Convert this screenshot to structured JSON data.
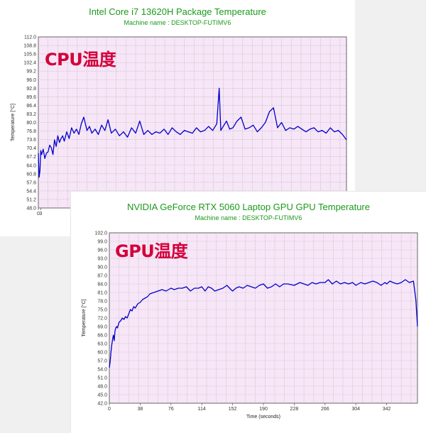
{
  "cpu": {
    "title": "Intel Core i7 13620H Package Temperature",
    "subtitle": "Machine name : DESKTOP-FUTIMV6",
    "overlay": "CPU温度"
  },
  "gpu": {
    "title": "NVIDIA GeForce RTX 5060 Laptop GPU GPU Temperature",
    "subtitle": "Machine name : DESKTOP-FUTIMV6",
    "overlay": "GPU温度"
  },
  "colors": {
    "plot_bg": "#f7e6f7",
    "line": "#0000cc",
    "title": "#1a9a1a",
    "overlay": "#d4003b",
    "grid": "#a5a5a5"
  },
  "chart_data": [
    {
      "type": "line",
      "title": "Intel Core i7 13620H Package Temperature",
      "subtitle": "Machine name : DESKTOP-FUTIMV6",
      "xlabel": "",
      "ylabel": "Temperature [°C]",
      "ylim": [
        48.0,
        112.0
      ],
      "xlim": [
        0,
        380
      ],
      "yticks": [
        "48.0",
        "51.2",
        "54.4",
        "57.6",
        "60.8",
        "64.0",
        "67.2",
        "70.4",
        "73.6",
        "76.8",
        "80.0",
        "83.2",
        "86.4",
        "89.6",
        "92.8",
        "96.0",
        "99.2",
        "102.4",
        "105.6",
        "108.8",
        "112.0"
      ],
      "xticks": [
        "0",
        "3"
      ],
      "grid": true,
      "series": [
        {
          "x": [
            0,
            1,
            2,
            3,
            4,
            6,
            8,
            10,
            12,
            14,
            16,
            18,
            20,
            22,
            24,
            26,
            28,
            30,
            32,
            35,
            38,
            41,
            44,
            47,
            50,
            53,
            56,
            60,
            63,
            66,
            70,
            74,
            78,
            82,
            86,
            90,
            95,
            100,
            105,
            110,
            115,
            120,
            125,
            130,
            135,
            140,
            145,
            150,
            155,
            160,
            165,
            170,
            175,
            180,
            185,
            190,
            195,
            200,
            205,
            210,
            215,
            220,
            223,
            225,
            228,
            232,
            236,
            240,
            245,
            250,
            255,
            260,
            265,
            270,
            275,
            280,
            285,
            290,
            295,
            300,
            305,
            310,
            315,
            320,
            325,
            330,
            335,
            340,
            345,
            350,
            355,
            360,
            365,
            370,
            375,
            380
          ],
          "y": [
            68.5,
            59.5,
            62.0,
            69.5,
            68.0,
            70.0,
            66.5,
            68.5,
            69.0,
            71.5,
            70.5,
            68.0,
            73.5,
            71.0,
            75.0,
            72.5,
            74.0,
            75.0,
            73.0,
            76.5,
            74.0,
            78.0,
            76.0,
            77.5,
            75.5,
            79.5,
            82.0,
            77.0,
            78.5,
            76.0,
            77.5,
            75.5,
            79.0,
            77.0,
            81.0,
            76.0,
            77.5,
            75.0,
            76.5,
            74.5,
            78.0,
            76.0,
            80.5,
            75.5,
            77.0,
            75.5,
            76.5,
            76.0,
            77.5,
            75.5,
            78.0,
            76.5,
            75.5,
            77.0,
            76.5,
            76.0,
            78.0,
            76.5,
            77.0,
            78.5,
            77.0,
            79.5,
            92.8,
            77.0,
            78.5,
            80.5,
            77.5,
            78.0,
            80.5,
            82.0,
            77.5,
            78.0,
            79.0,
            76.5,
            78.0,
            80.0,
            84.0,
            85.5,
            78.0,
            80.0,
            77.0,
            78.0,
            77.5,
            78.5,
            77.5,
            76.5,
            77.5,
            78.0,
            76.5,
            77.0,
            76.0,
            78.0,
            76.5,
            77.0,
            75.5,
            73.5
          ]
        }
      ]
    },
    {
      "type": "line",
      "title": "NVIDIA GeForce RTX 5060 Laptop GPU GPU Temperature",
      "subtitle": "Machine name : DESKTOP-FUTIMV6",
      "xlabel": "Time (seconds)",
      "ylabel": "Temperature [°C]",
      "ylim": [
        42.0,
        102.0
      ],
      "xlim": [
        0,
        380
      ],
      "yticks": [
        "42.0",
        "45.0",
        "48.0",
        "51.0",
        "54.0",
        "57.0",
        "60.0",
        "63.0",
        "66.0",
        "69.0",
        "72.0",
        "75.0",
        "78.0",
        "81.0",
        "84.0",
        "87.0",
        "90.0",
        "93.0",
        "96.0",
        "99.0",
        "102.0"
      ],
      "xticks": [
        "0",
        "38",
        "76",
        "114",
        "152",
        "190",
        "228",
        "266",
        "304",
        "342"
      ],
      "grid": true,
      "series": [
        {
          "x": [
            0,
            1,
            2,
            3,
            4,
            5,
            6,
            7,
            8,
            9,
            10,
            12,
            14,
            16,
            18,
            20,
            22,
            24,
            26,
            28,
            30,
            32,
            35,
            38,
            41,
            44,
            47,
            50,
            55,
            60,
            65,
            70,
            76,
            80,
            85,
            90,
            95,
            100,
            105,
            110,
            114,
            118,
            122,
            126,
            130,
            135,
            140,
            145,
            150,
            152,
            156,
            160,
            165,
            170,
            175,
            180,
            185,
            190,
            195,
            200,
            205,
            210,
            215,
            220,
            228,
            235,
            240,
            245,
            250,
            255,
            260,
            266,
            270,
            275,
            280,
            285,
            290,
            295,
            300,
            304,
            310,
            315,
            320,
            325,
            330,
            335,
            340,
            342,
            346,
            350,
            355,
            360,
            365,
            370,
            375,
            378,
            380
          ],
          "y": [
            54.5,
            56.5,
            60.0,
            62.5,
            64.5,
            66.0,
            64.0,
            67.5,
            68.5,
            69.0,
            68.5,
            70.5,
            71.0,
            72.0,
            71.5,
            72.5,
            72.0,
            73.5,
            75.0,
            74.5,
            76.0,
            75.5,
            77.0,
            77.5,
            78.5,
            79.0,
            79.5,
            80.5,
            81.0,
            81.5,
            82.0,
            81.5,
            82.5,
            82.0,
            82.5,
            82.5,
            83.0,
            81.5,
            82.5,
            82.5,
            83.0,
            81.5,
            83.0,
            82.5,
            81.5,
            82.0,
            82.5,
            83.5,
            82.0,
            81.5,
            82.5,
            83.0,
            82.5,
            83.5,
            83.0,
            82.5,
            83.5,
            84.0,
            82.5,
            83.0,
            84.0,
            83.0,
            84.0,
            84.0,
            83.5,
            84.5,
            84.0,
            83.5,
            84.5,
            84.0,
            84.5,
            84.5,
            85.5,
            84.0,
            85.0,
            84.0,
            84.5,
            84.0,
            84.5,
            83.5,
            84.5,
            84.0,
            84.5,
            85.0,
            84.5,
            83.5,
            84.5,
            84.0,
            85.0,
            84.5,
            84.0,
            84.5,
            85.5,
            84.5,
            85.0,
            78.5,
            69.0
          ]
        }
      ]
    }
  ]
}
